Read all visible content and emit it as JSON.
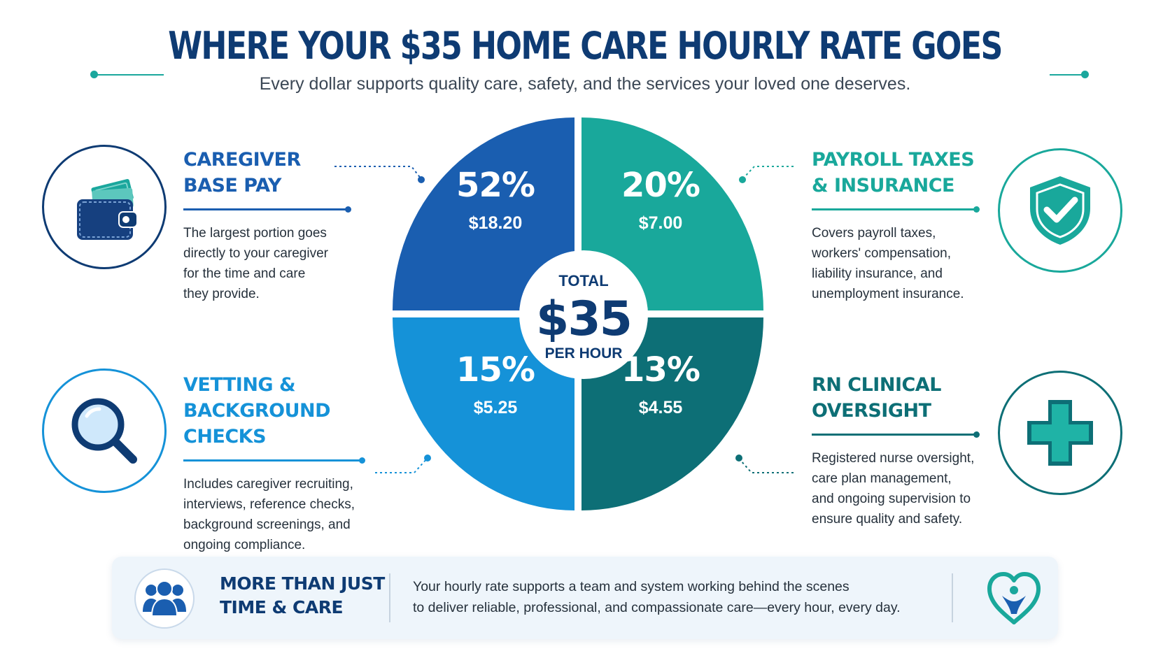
{
  "title": "WHERE YOUR $35 HOME CARE HOURLY RATE GOES",
  "subtitle": "Every dollar supports quality care, safety, and the services your loved one deserves.",
  "colors": {
    "navy": "#0e3b73",
    "blue": "#1a5eb0",
    "light_blue": "#1592d8",
    "teal": "#19a89b",
    "dark_teal": "#0d6f76"
  },
  "categories": [
    {
      "key": "caregiver",
      "title": "CAREGIVER\nBASE PAY",
      "description": "The largest portion goes\ndirectly to your caregiver\nfor the time and care\nthey provide.",
      "icon": "wallet-icon"
    },
    {
      "key": "payroll",
      "title": "PAYROLL TAXES\n& INSURANCE",
      "description": "Covers payroll taxes,\nworkers' compensation,\nliability insurance, and\nunemployment insurance.",
      "icon": "shield-check-icon"
    },
    {
      "key": "vetting",
      "title": "VETTING &\nBACKGROUND CHECKS",
      "description": "Includes caregiver recruiting,\ninterviews, reference checks,\nbackground screenings, and\nongoing compliance.",
      "icon": "magnifier-icon"
    },
    {
      "key": "rn",
      "title": "RN CLINICAL\nOVERSIGHT",
      "description": "Registered nurse oversight,\ncare plan management,\nand ongoing supervision to\nensure quality and safety.",
      "icon": "medical-cross-icon"
    }
  ],
  "chart_data": {
    "type": "pie",
    "title": "WHERE YOUR $35 HOME CARE HOURLY RATE GOES",
    "center_label": {
      "top": "TOTAL",
      "value": "$35",
      "bottom": "PER HOUR"
    },
    "slices": [
      {
        "category": "CAREGIVER BASE PAY",
        "percent": 52,
        "percent_label": "52%",
        "amount": 18.2,
        "amount_label": "$18.20",
        "quadrant": "top-left",
        "color": "#1a5eb0"
      },
      {
        "category": "PAYROLL TAXES & INSURANCE",
        "percent": 20,
        "percent_label": "20%",
        "amount": 7.0,
        "amount_label": "$7.00",
        "quadrant": "top-right",
        "color": "#19a89b"
      },
      {
        "category": "RN CLINICAL OVERSIGHT",
        "percent": 13,
        "percent_label": "13%",
        "amount": 4.55,
        "amount_label": "$4.55",
        "quadrant": "bottom-right",
        "color": "#0d6f76"
      },
      {
        "category": "VETTING & BACKGROUND CHECKS",
        "percent": 15,
        "percent_label": "15%",
        "amount": 5.25,
        "amount_label": "$5.25",
        "quadrant": "bottom-left",
        "color": "#1592d8"
      }
    ]
  },
  "footer": {
    "title": "MORE THAN JUST\nTIME & CARE",
    "text": "Your hourly rate supports a team and system working behind the scenes\nto deliver reliable, professional, and compassionate care—every hour, every day.",
    "icon": "team-icon",
    "heart_icon": "heart-person-icon"
  }
}
